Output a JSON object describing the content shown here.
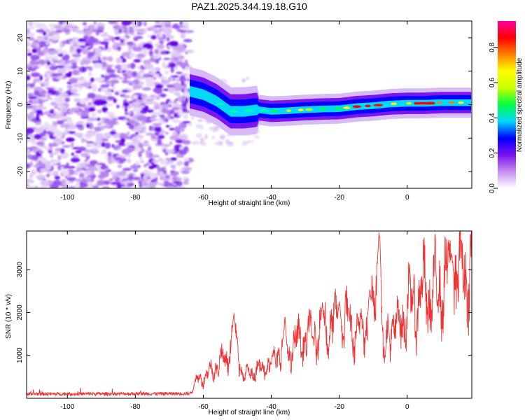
{
  "title": "PAZ1.2025.344.19.18.G10",
  "chart_data": [
    {
      "type": "heatmap",
      "name": "spectrogram",
      "xlabel": "Height of straight line (km)",
      "ylabel": "Frequency (Hz)",
      "xlim": [
        -112,
        19
      ],
      "ylim": [
        -25,
        25
      ],
      "xticks": [
        -100,
        -80,
        -60,
        -40,
        -20,
        0
      ],
      "yticks": [
        -20,
        -10,
        0,
        10,
        20
      ],
      "noise_region_x": [
        -112,
        -64
      ],
      "ridge": [
        {
          "x": -64,
          "y": 4
        },
        {
          "x": -60,
          "y": 3
        },
        {
          "x": -56,
          "y": 1
        },
        {
          "x": -52,
          "y": -2
        },
        {
          "x": -48,
          "y": -2
        },
        {
          "x": -44,
          "y": -1.5
        },
        {
          "x": -40,
          "y": -2
        },
        {
          "x": -35,
          "y": -1.8
        },
        {
          "x": -30,
          "y": -1.5
        },
        {
          "x": -25,
          "y": -1.3
        },
        {
          "x": -20,
          "y": -1.2
        },
        {
          "x": -15,
          "y": -0.6
        },
        {
          "x": -10,
          "y": -0.3
        },
        {
          "x": -5,
          "y": 0.2
        },
        {
          "x": 0,
          "y": 0.4
        },
        {
          "x": 5,
          "y": 0.4
        },
        {
          "x": 10,
          "y": 0.6
        },
        {
          "x": 19,
          "y": 0.6
        }
      ],
      "colorbar": {
        "label": "Normalized spectral amplitude",
        "range": [
          0,
          0.95
        ],
        "ticks": [
          0.0,
          0.2,
          0.4,
          0.6,
          0.8
        ],
        "tick_labels": [
          "0.0",
          "0.2",
          "0.4",
          "0.6",
          "0.8"
        ],
        "colors": [
          "#ffffff",
          "#c58ef0",
          "#7a10f0",
          "#0000ff",
          "#00d8ff",
          "#00ff40",
          "#c8ff00",
          "#ffff00",
          "#ff8000",
          "#ff0000",
          "#ff00a0"
        ]
      }
    },
    {
      "type": "line",
      "name": "snr",
      "xlabel": "Height of straight line (km)",
      "ylabel": "SNR (10 * v/v)",
      "xlim": [
        -112,
        19
      ],
      "ylim": [
        0,
        3900
      ],
      "xticks": [
        -100,
        -80,
        -60,
        -40,
        -20,
        0
      ],
      "yticks": [
        1000,
        2000,
        3000
      ],
      "color": "#ee3333",
      "envelope": [
        {
          "x": -112,
          "y": 100
        },
        {
          "x": -64,
          "y": 110
        },
        {
          "x": -62,
          "y": 400
        },
        {
          "x": -58,
          "y": 600
        },
        {
          "x": -55,
          "y": 850
        },
        {
          "x": -53,
          "y": 950
        },
        {
          "x": -51,
          "y": 1500
        },
        {
          "x": -50,
          "y": 1100
        },
        {
          "x": -48,
          "y": 500
        },
        {
          "x": -45,
          "y": 650
        },
        {
          "x": -40,
          "y": 800
        },
        {
          "x": -37,
          "y": 1200
        },
        {
          "x": -35,
          "y": 1000
        },
        {
          "x": -33,
          "y": 1300
        },
        {
          "x": -30,
          "y": 1400
        },
        {
          "x": -27,
          "y": 1500
        },
        {
          "x": -25,
          "y": 1600
        },
        {
          "x": -22,
          "y": 1750
        },
        {
          "x": -20,
          "y": 1650
        },
        {
          "x": -18,
          "y": 1800
        },
        {
          "x": -15,
          "y": 1500
        },
        {
          "x": -12,
          "y": 1750
        },
        {
          "x": -10,
          "y": 2000
        },
        {
          "x": -8,
          "y": 3300
        },
        {
          "x": -7,
          "y": 800
        },
        {
          "x": -5,
          "y": 1800
        },
        {
          "x": -3,
          "y": 1600
        },
        {
          "x": 0,
          "y": 2100
        },
        {
          "x": 3,
          "y": 2300
        },
        {
          "x": 5,
          "y": 2500
        },
        {
          "x": 7,
          "y": 2400
        },
        {
          "x": 10,
          "y": 2600
        },
        {
          "x": 13,
          "y": 3000
        },
        {
          "x": 15,
          "y": 2800
        },
        {
          "x": 17,
          "y": 3050
        },
        {
          "x": 19,
          "y": 2950
        }
      ],
      "peaks": [
        {
          "x": -51,
          "y": 2000
        },
        {
          "x": -36,
          "y": 1900
        },
        {
          "x": -25,
          "y": 2200
        },
        {
          "x": -20,
          "y": 2300
        },
        {
          "x": -11,
          "y": 2600
        },
        {
          "x": -8.3,
          "y": 3870
        },
        {
          "x": 13,
          "y": 3350
        }
      ]
    }
  ]
}
